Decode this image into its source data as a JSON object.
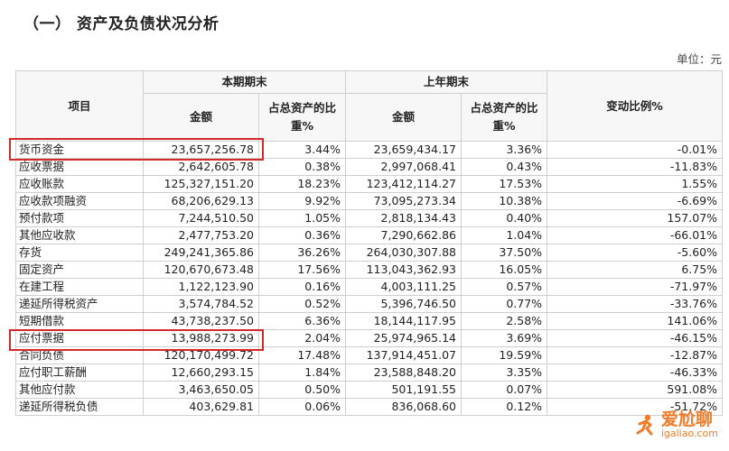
{
  "title": "（一） 资产及负债状况分析",
  "unit": "单位：元",
  "table": {
    "headers": {
      "item": "项目",
      "current_period": "本期期末",
      "prior_period": "上年期末",
      "change": "变动比例%",
      "amount": "金额",
      "ratio_line1": "占总资产的比",
      "ratio_line2": "重%"
    },
    "rows": [
      {
        "name": "货币资金",
        "cur_amount": "23,657,256.78",
        "cur_ratio": "3.44%",
        "prev_amount": "23,659,434.17",
        "prev_ratio": "3.36%",
        "change": "-0.01%"
      },
      {
        "name": "应收票据",
        "cur_amount": "2,642,605.78",
        "cur_ratio": "0.38%",
        "prev_amount": "2,997,068.41",
        "prev_ratio": "0.43%",
        "change": "-11.83%"
      },
      {
        "name": "应收账款",
        "cur_amount": "125,327,151.20",
        "cur_ratio": "18.23%",
        "prev_amount": "123,412,114.27",
        "prev_ratio": "17.53%",
        "change": "1.55%"
      },
      {
        "name": "应收款项融资",
        "cur_amount": "68,206,629.13",
        "cur_ratio": "9.92%",
        "prev_amount": "73,095,273.34",
        "prev_ratio": "10.38%",
        "change": "-6.69%"
      },
      {
        "name": "预付款项",
        "cur_amount": "7,244,510.50",
        "cur_ratio": "1.05%",
        "prev_amount": "2,818,134.43",
        "prev_ratio": "0.40%",
        "change": "157.07%"
      },
      {
        "name": "其他应收款",
        "cur_amount": "2,477,753.20",
        "cur_ratio": "0.36%",
        "prev_amount": "7,290,662.86",
        "prev_ratio": "1.04%",
        "change": "-66.01%"
      },
      {
        "name": "存货",
        "cur_amount": "249,241,365.86",
        "cur_ratio": "36.26%",
        "prev_amount": "264,030,307.88",
        "prev_ratio": "37.50%",
        "change": "-5.60%"
      },
      {
        "name": "固定资产",
        "cur_amount": "120,670,673.48",
        "cur_ratio": "17.56%",
        "prev_amount": "113,043,362.93",
        "prev_ratio": "16.05%",
        "change": "6.75%"
      },
      {
        "name": "在建工程",
        "cur_amount": "1,122,123.90",
        "cur_ratio": "0.16%",
        "prev_amount": "4,003,111.25",
        "prev_ratio": "0.57%",
        "change": "-71.97%"
      },
      {
        "name": "递延所得税资产",
        "cur_amount": "3,574,784.52",
        "cur_ratio": "0.52%",
        "prev_amount": "5,396,746.50",
        "prev_ratio": "0.77%",
        "change": "-33.76%"
      },
      {
        "name": "短期借款",
        "cur_amount": "43,738,237.50",
        "cur_ratio": "6.36%",
        "prev_amount": "18,144,117.95",
        "prev_ratio": "2.58%",
        "change": "141.06%"
      },
      {
        "name": "应付票据",
        "cur_amount": "13,988,273.99",
        "cur_ratio": "2.04%",
        "prev_amount": "25,974,965.14",
        "prev_ratio": "3.69%",
        "change": "-46.15%"
      },
      {
        "name": "合同负债",
        "cur_amount": "120,170,499.72",
        "cur_ratio": "17.48%",
        "prev_amount": "137,914,451.07",
        "prev_ratio": "19.59%",
        "change": "-12.87%"
      },
      {
        "name": "应付职工薪酬",
        "cur_amount": "12,660,293.15",
        "cur_ratio": "1.84%",
        "prev_amount": "23,588,848.20",
        "prev_ratio": "3.35%",
        "change": "-46.33%"
      },
      {
        "name": "其他应付款",
        "cur_amount": "3,463,650.05",
        "cur_ratio": "0.50%",
        "prev_amount": "501,191.55",
        "prev_ratio": "0.07%",
        "change": "591.08%"
      },
      {
        "name": "递延所得税负债",
        "cur_amount": "403,629.81",
        "cur_ratio": "0.06%",
        "prev_amount": "836,068.60",
        "prev_ratio": "0.12%",
        "change": "-51.72%"
      }
    ]
  },
  "watermark": {
    "main": "爱尬聊",
    "sub": "igaliao.com",
    "color": "#f0741d"
  },
  "highlight_color": "#d62828"
}
